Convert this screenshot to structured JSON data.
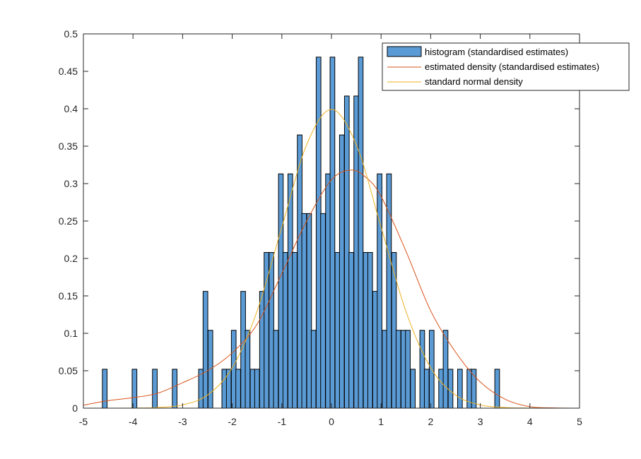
{
  "chart_data": {
    "type": "bar",
    "title": "",
    "xlabel": "",
    "ylabel": "",
    "xlim": [
      -5,
      5
    ],
    "ylim": [
      0,
      0.5
    ],
    "xticks": [
      -5,
      -4,
      -3,
      -2,
      -1,
      0,
      1,
      2,
      3,
      4,
      5
    ],
    "yticks": [
      0,
      0.05,
      0.1,
      0.15,
      0.2,
      0.25,
      0.3,
      0.35,
      0.4,
      0.45,
      0.5
    ],
    "xtick_labels": [
      "-5",
      "-4",
      "-3",
      "-2",
      "-1",
      "0",
      "1",
      "2",
      "3",
      "4",
      "5"
    ],
    "ytick_labels": [
      "0",
      "0.05",
      "0.1",
      "0.15",
      "0.2",
      "0.25",
      "0.3",
      "0.35",
      "0.4",
      "0.45",
      "0.5"
    ],
    "grid": false,
    "legend_position": "top-right",
    "histogram": {
      "name": "histogram (standardised estimates)",
      "bin_width": 0.095,
      "bin_centers": [
        -4.57,
        -3.97,
        -3.56,
        -3.16,
        -2.63,
        -2.54,
        -2.44,
        -2.16,
        -2.07,
        -1.97,
        -1.88,
        -1.78,
        -1.69,
        -1.59,
        -1.5,
        -1.4,
        -1.31,
        -1.21,
        -1.12,
        -1.02,
        -0.93,
        -0.83,
        -0.74,
        -0.64,
        -0.55,
        -0.45,
        -0.36,
        -0.26,
        -0.17,
        -0.07,
        0.02,
        0.12,
        0.21,
        0.31,
        0.4,
        0.5,
        0.59,
        0.69,
        0.78,
        0.88,
        0.97,
        1.07,
        1.16,
        1.26,
        1.35,
        1.45,
        1.54,
        1.64,
        1.83,
        1.92,
        2.02,
        2.21,
        2.3,
        2.4,
        2.59,
        2.78,
        2.87,
        3.34
      ],
      "heights": [
        0.052,
        0.052,
        0.052,
        0.052,
        0.052,
        0.156,
        0.104,
        0.052,
        0.052,
        0.104,
        0.052,
        0.156,
        0.104,
        0.052,
        0.052,
        0.156,
        0.208,
        0.208,
        0.104,
        0.313,
        0.208,
        0.313,
        0.208,
        0.365,
        0.26,
        0.26,
        0.104,
        0.469,
        0.26,
        0.313,
        0.469,
        0.208,
        0.365,
        0.417,
        0.208,
        0.417,
        0.469,
        0.208,
        0.208,
        0.156,
        0.313,
        0.104,
        0.313,
        0.208,
        0.104,
        0.104,
        0.104,
        0.052,
        0.104,
        0.052,
        0.104,
        0.052,
        0.104,
        0.052,
        0.052,
        0.052,
        0.052,
        0.052
      ],
      "color": "#5b9bd5"
    },
    "series": [
      {
        "name": "estimated density (standardised estimates)",
        "color": "#d95319",
        "x": [
          -5,
          -4.5,
          -4,
          -3.5,
          -3,
          -2.5,
          -2,
          -1.5,
          -1,
          -0.5,
          0,
          0.4,
          0.7,
          1,
          1.5,
          2,
          2.5,
          3,
          3.5,
          4,
          4.5,
          5
        ],
        "y": [
          0.004,
          0.01,
          0.014,
          0.02,
          0.034,
          0.05,
          0.074,
          0.112,
          0.18,
          0.25,
          0.305,
          0.318,
          0.308,
          0.283,
          0.21,
          0.13,
          0.075,
          0.035,
          0.012,
          0.002,
          0.0003,
          0
        ]
      },
      {
        "name": "standard normal density",
        "color": "#edb120",
        "x": [
          -5,
          -4.5,
          -4,
          -3.5,
          -3,
          -2.5,
          -2,
          -1.5,
          -1,
          -0.5,
          0,
          0.5,
          1,
          1.5,
          2,
          2.5,
          3,
          3.5,
          4,
          4.5,
          5
        ],
        "y": [
          1.5e-06,
          1.6e-05,
          0.000134,
          0.00087,
          0.0044,
          0.0175,
          0.054,
          0.1295,
          0.242,
          0.352,
          0.399,
          0.352,
          0.242,
          0.1295,
          0.054,
          0.0175,
          0.0044,
          0.00087,
          0.000134,
          1.6e-05,
          1.5e-06
        ]
      }
    ],
    "legend": {
      "entries": [
        "histogram (standardised estimates)",
        "estimated density (standardised estimates)",
        "standard normal density"
      ]
    }
  }
}
